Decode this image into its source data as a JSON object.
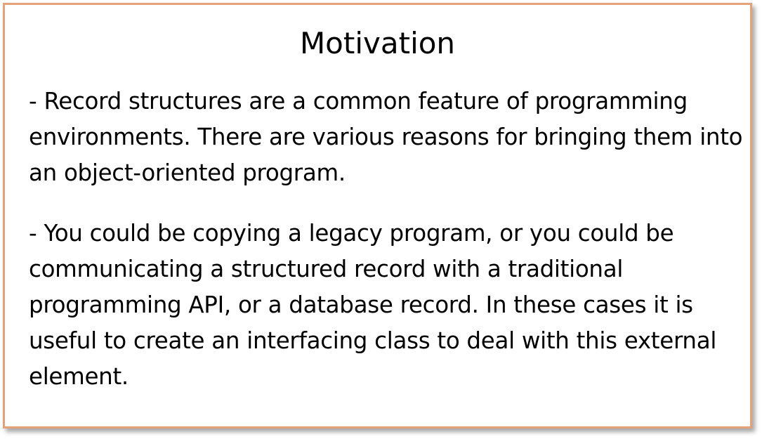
{
  "slide": {
    "title": "Motivation",
    "paragraphs": [
      "- Record structures are a common feature of programming environments. There are various reasons for bringing them into an object-oriented program.",
      "- You could be copying a legacy program, or you could be communicating a structured record with a traditional programming API, or a database record. In these cases it is useful to create an interfacing class to deal with this external element."
    ],
    "colors": {
      "border": "#e3a27a",
      "text": "#000000",
      "background": "#ffffff"
    }
  }
}
